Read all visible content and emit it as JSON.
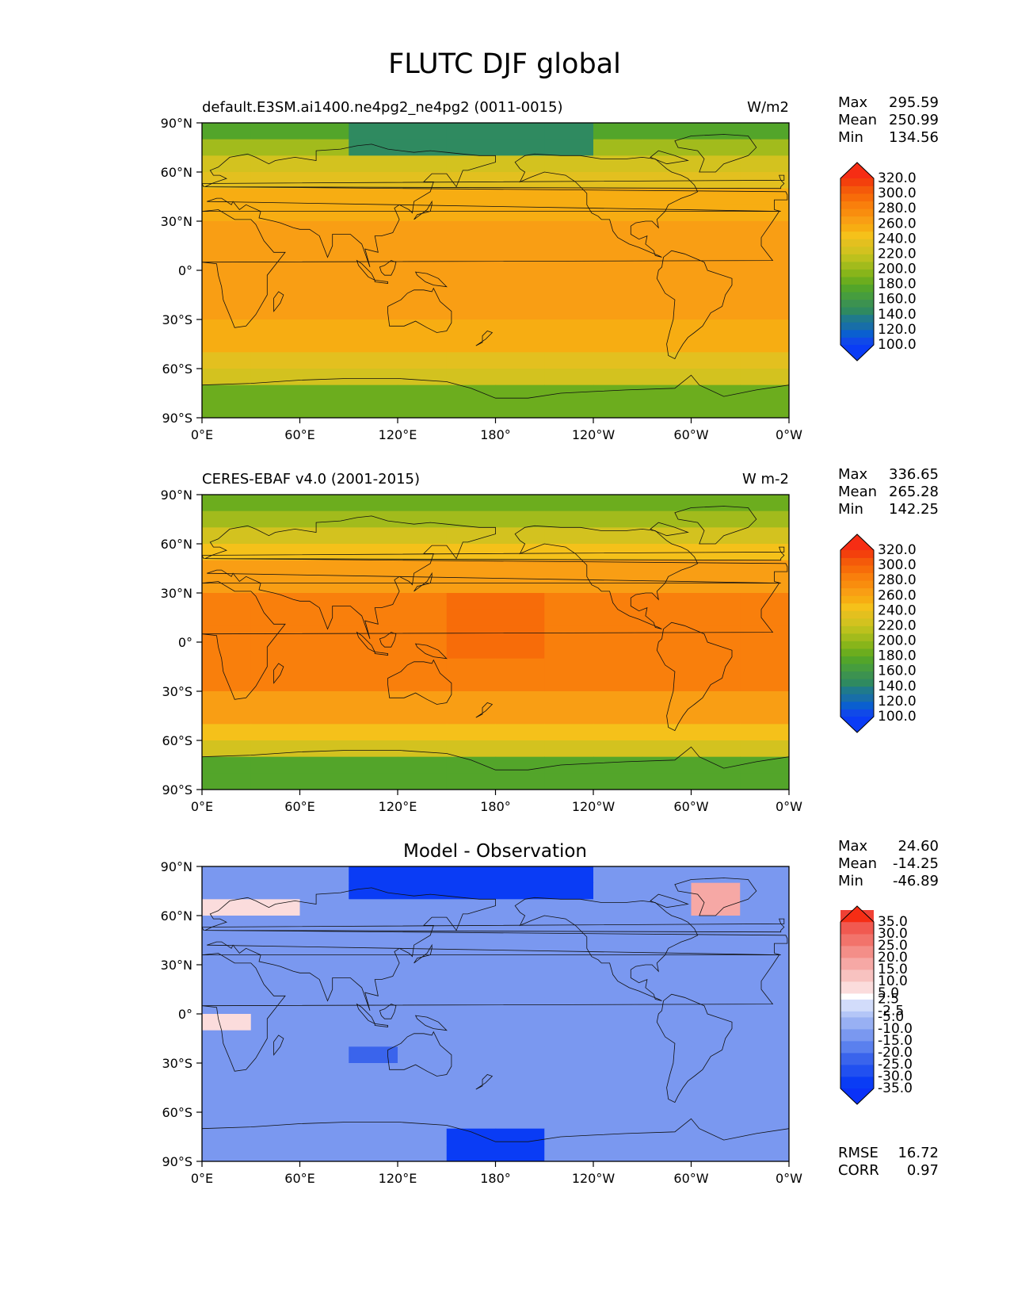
{
  "title": "FLUTC DJF global",
  "chart_data": [
    {
      "type": "heatmap",
      "projection": "equirectangular",
      "title_left": "default.E3SM.ai1400.ne4pg2_ne4pg2 (0011-0015)",
      "title_right": "W/m2",
      "lon_ticks": [
        "0°E",
        "60°E",
        "120°E",
        "180°",
        "120°W",
        "60°W",
        "0°W"
      ],
      "lat_ticks": [
        "90°N",
        "60°N",
        "30°N",
        "0°",
        "30°S",
        "60°S",
        "90°S"
      ],
      "stats": [
        {
          "label": "Max",
          "value": "295.59"
        },
        {
          "label": "Mean",
          "value": "250.99"
        },
        {
          "label": "Min",
          "value": "134.56"
        }
      ],
      "colorbar": {
        "levels": [
          90,
          100,
          110,
          120,
          130,
          140,
          150,
          160,
          170,
          180,
          190,
          200,
          210,
          220,
          230,
          240,
          250,
          260,
          270,
          280,
          290,
          300,
          310,
          320,
          330
        ],
        "colors": [
          "#1049e8",
          "#0a5fd0",
          "#186ea8",
          "#1f7a8c",
          "#2f8a60",
          "#3c9250",
          "#469d3e",
          "#53a52a",
          "#6cad1e",
          "#88b51a",
          "#a2bb1c",
          "#bcc11d",
          "#d3c21f",
          "#e3c01f",
          "#f5c11a",
          "#f7ad12",
          "#f99e14",
          "#f98d0e",
          "#f97f0c",
          "#f76c09",
          "#f45a0a",
          "#f3400c"
        ],
        "extend_low": "#0a3cf5",
        "extend_high": "#f62d14",
        "tick_labels": [
          "100.0",
          "120.0",
          "140.0",
          "160.0",
          "180.0",
          "200.0",
          "220.0",
          "240.0",
          "260.0",
          "280.0",
          "300.0",
          "320.0"
        ]
      }
    },
    {
      "type": "heatmap",
      "projection": "equirectangular",
      "title_left": "CERES-EBAF v4.0 (2001-2015)",
      "title_right": "W m-2",
      "lon_ticks": [
        "0°E",
        "60°E",
        "120°E",
        "180°",
        "120°W",
        "60°W",
        "0°W"
      ],
      "lat_ticks": [
        "90°N",
        "60°N",
        "30°N",
        "0°",
        "30°S",
        "60°S",
        "90°S"
      ],
      "stats": [
        {
          "label": "Max",
          "value": "336.65"
        },
        {
          "label": "Mean",
          "value": "265.28"
        },
        {
          "label": "Min",
          "value": "142.25"
        }
      ],
      "colorbar": {
        "levels": [
          90,
          100,
          110,
          120,
          130,
          140,
          150,
          160,
          170,
          180,
          190,
          200,
          210,
          220,
          230,
          240,
          250,
          260,
          270,
          280,
          290,
          300,
          310,
          320,
          330
        ],
        "colors": [
          "#1049e8",
          "#0a5fd0",
          "#186ea8",
          "#1f7a8c",
          "#2f8a60",
          "#3c9250",
          "#469d3e",
          "#53a52a",
          "#6cad1e",
          "#88b51a",
          "#a2bb1c",
          "#bcc11d",
          "#d3c21f",
          "#e3c01f",
          "#f5c11a",
          "#f7ad12",
          "#f99e14",
          "#f98d0e",
          "#f97f0c",
          "#f76c09",
          "#f45a0a",
          "#f3400c"
        ],
        "extend_low": "#0a3cf5",
        "extend_high": "#f62d14",
        "tick_labels": [
          "100.0",
          "120.0",
          "140.0",
          "160.0",
          "180.0",
          "200.0",
          "220.0",
          "240.0",
          "260.0",
          "280.0",
          "300.0",
          "320.0"
        ]
      }
    },
    {
      "type": "heatmap",
      "projection": "equirectangular",
      "title_center": "Model - Observation",
      "lon_ticks": [
        "0°E",
        "60°E",
        "120°E",
        "180°",
        "120°W",
        "60°W",
        "0°W"
      ],
      "lat_ticks": [
        "90°N",
        "60°N",
        "30°N",
        "0°",
        "30°S",
        "60°S",
        "90°S"
      ],
      "stats": [
        {
          "label": "Max",
          "value": "24.60"
        },
        {
          "label": "Mean",
          "value": "-14.25"
        },
        {
          "label": "Min",
          "value": "-46.89"
        }
      ],
      "extra_stats": [
        {
          "label": "RMSE",
          "value": "16.72"
        },
        {
          "label": "CORR",
          "value": "0.97"
        }
      ],
      "colorbar": {
        "levels": [
          -40,
          -35,
          -30,
          -25,
          -20,
          -15,
          -10,
          -5,
          -2.5,
          2.5,
          5,
          10,
          15,
          20,
          25,
          30,
          35,
          40
        ],
        "colors": [
          "#0a3cf5",
          "#2150f0",
          "#3a64ec",
          "#5a80ee",
          "#7a98f0",
          "#98b0f3",
          "#b4c6f7",
          "#d2dcfa",
          "#ffffff",
          "#fbdcdc",
          "#f8c2c0",
          "#f6a8a5",
          "#f48e88",
          "#f2736b",
          "#f15950",
          "#f04034",
          "#ee2a1e"
        ],
        "extend_low": "#0a32f8",
        "extend_high": "#f62d14",
        "tick_labels": [
          "-35.0",
          "-30.0",
          "-25.0",
          "-20.0",
          "-15.0",
          "-10.0",
          "-5.0",
          "-2.5",
          "2.5",
          "5.0",
          "10.0",
          "15.0",
          "20.0",
          "25.0",
          "30.0",
          "35.0"
        ]
      }
    }
  ]
}
